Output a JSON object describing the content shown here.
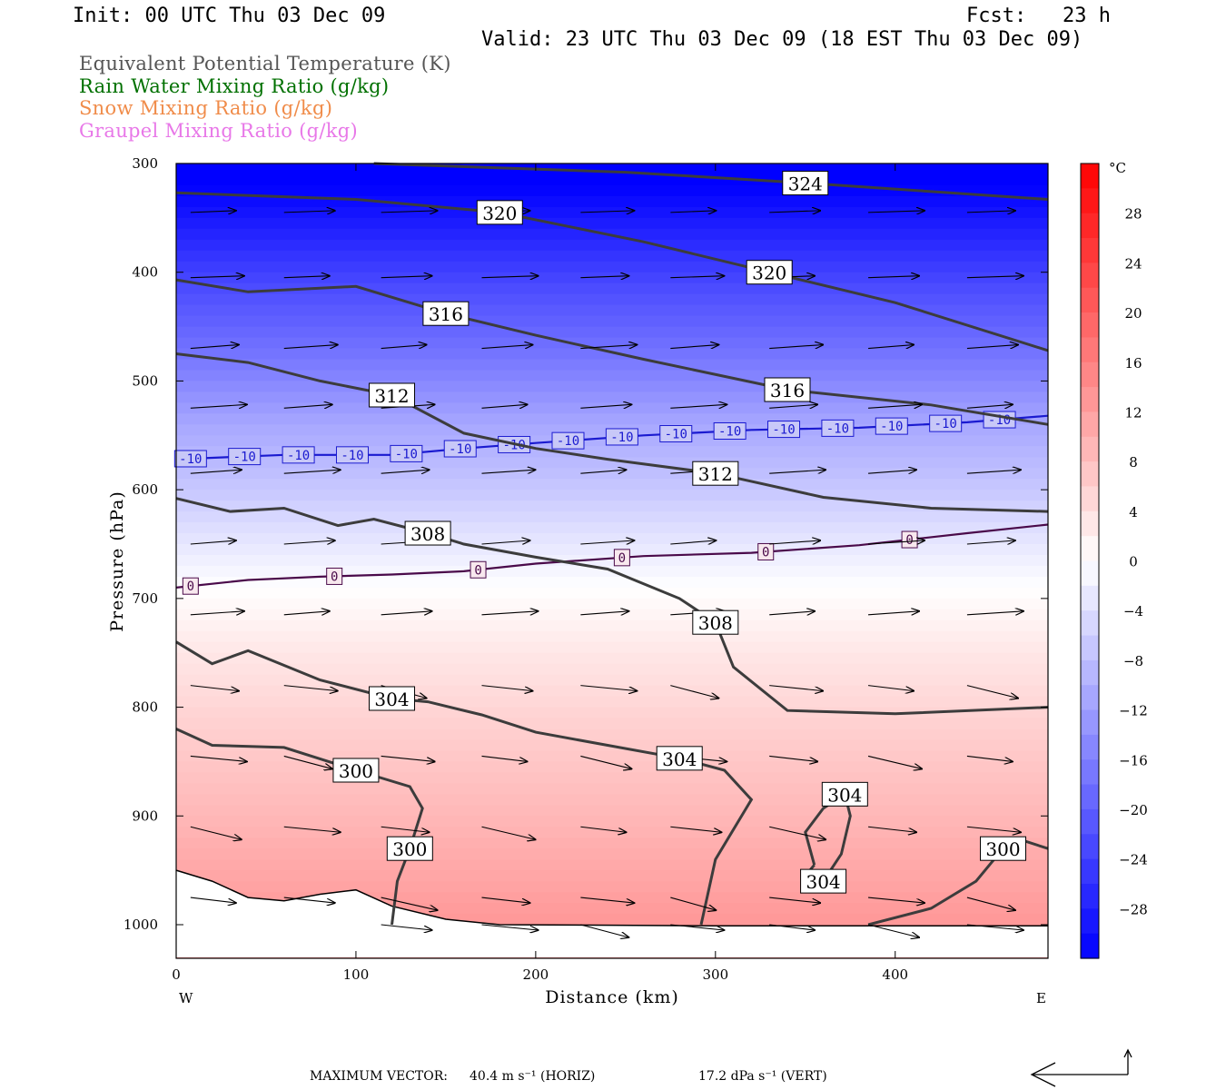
{
  "header": {
    "init": "Init: 00 UTC Thu 03 Dec 09",
    "fcst": "Fcst:   23 h",
    "valid": "Valid: 23 UTC Thu 03 Dec 09 (18 EST Thu 03 Dec 09)"
  },
  "fields": [
    {
      "label": "Equivalent Potential Temperature (K)",
      "color": "#555555"
    },
    {
      "label": "Rain Water Mixing Ratio (g/kg)",
      "color": "#007000"
    },
    {
      "label": "Snow Mixing Ratio (g/kg)",
      "color": "#f08c4a"
    },
    {
      "label": "Graupel Mixing Ratio (g/kg)",
      "color": "#e878e8"
    }
  ],
  "chart_data": {
    "type": "cross-section",
    "xlabel": "Distance (km)",
    "ylabel": "Pressure (hPa)",
    "xlim": [
      0,
      485
    ],
    "ylim": [
      1030,
      300
    ],
    "xticks": [
      0,
      100,
      200,
      300,
      400
    ],
    "yticks": [
      300,
      400,
      500,
      600,
      700,
      800,
      900,
      1000
    ],
    "x_ends": {
      "left": "W",
      "right": "E"
    },
    "colorbar": {
      "unit": "°C",
      "range": [
        -32,
        32
      ],
      "tick_values": [
        28,
        24,
        20,
        16,
        12,
        8,
        4,
        0,
        -4,
        -8,
        -12,
        -16,
        -20,
        -24,
        -28
      ],
      "low_color": "#0000ff",
      "high_color": "#ff0000"
    },
    "theta_e_contours": [
      {
        "value": 324,
        "points": [
          [
            110,
            300
          ],
          [
            250,
            308
          ],
          [
            350,
            318
          ],
          [
            485,
            333
          ]
        ]
      },
      {
        "value": 320,
        "points": [
          [
            0,
            327
          ],
          [
            100,
            333
          ],
          [
            180,
            345
          ],
          [
            260,
            372
          ],
          [
            330,
            400
          ],
          [
            400,
            428
          ],
          [
            485,
            472
          ]
        ]
      },
      {
        "value": 316,
        "points": [
          [
            0,
            407
          ],
          [
            40,
            418
          ],
          [
            100,
            413
          ],
          [
            150,
            438
          ],
          [
            200,
            458
          ],
          [
            260,
            480
          ],
          [
            340,
            508
          ],
          [
            420,
            522
          ],
          [
            485,
            540
          ]
        ]
      },
      {
        "value": 312,
        "points": [
          [
            0,
            475
          ],
          [
            40,
            483
          ],
          [
            80,
            500
          ],
          [
            120,
            513
          ],
          [
            160,
            548
          ],
          [
            200,
            562
          ],
          [
            240,
            572
          ],
          [
            300,
            585
          ],
          [
            360,
            607
          ],
          [
            420,
            617
          ],
          [
            485,
            620
          ]
        ]
      },
      {
        "value": 308,
        "points": [
          [
            0,
            608
          ],
          [
            30,
            620
          ],
          [
            60,
            617
          ],
          [
            90,
            633
          ],
          [
            110,
            627
          ],
          [
            140,
            640
          ],
          [
            160,
            650
          ],
          [
            200,
            662
          ],
          [
            240,
            673
          ],
          [
            280,
            700
          ],
          [
            300,
            722
          ],
          [
            310,
            763
          ],
          [
            340,
            803
          ],
          [
            400,
            806
          ],
          [
            485,
            800
          ]
        ]
      },
      {
        "value": 304,
        "points": [
          [
            0,
            740
          ],
          [
            20,
            760
          ],
          [
            40,
            748
          ],
          [
            80,
            775
          ],
          [
            120,
            792
          ],
          [
            140,
            795
          ],
          [
            170,
            807
          ],
          [
            200,
            823
          ],
          [
            240,
            835
          ],
          [
            280,
            847
          ],
          [
            305,
            858
          ],
          [
            320,
            885
          ],
          [
            300,
            940
          ],
          [
            292,
            1000
          ]
        ]
      },
      {
        "value": 304,
        "points": [
          [
            355,
            945
          ],
          [
            350,
            915
          ],
          [
            360,
            893
          ],
          [
            372,
            880
          ],
          [
            375,
            900
          ],
          [
            370,
            935
          ],
          [
            360,
            960
          ],
          [
            350,
            955
          ],
          [
            355,
            945
          ]
        ]
      },
      {
        "value": 300,
        "points": [
          [
            0,
            820
          ],
          [
            20,
            835
          ],
          [
            60,
            837
          ],
          [
            100,
            858
          ],
          [
            130,
            873
          ],
          [
            137,
            893
          ],
          [
            130,
            930
          ],
          [
            123,
            960
          ],
          [
            120,
            1000
          ]
        ]
      },
      {
        "value": 300,
        "points": [
          [
            385,
            1000
          ],
          [
            420,
            985
          ],
          [
            445,
            960
          ],
          [
            460,
            930
          ],
          [
            470,
            922
          ],
          [
            485,
            930
          ]
        ]
      }
    ],
    "isotherms": [
      {
        "value": -10,
        "points": [
          [
            0,
            572
          ],
          [
            60,
            568
          ],
          [
            120,
            568
          ],
          [
            160,
            562
          ],
          [
            200,
            557
          ],
          [
            260,
            550
          ],
          [
            320,
            545
          ],
          [
            380,
            543
          ],
          [
            440,
            538
          ],
          [
            485,
            532
          ]
        ]
      },
      {
        "value": 0,
        "points": [
          [
            0,
            690
          ],
          [
            40,
            683
          ],
          [
            80,
            680
          ],
          [
            120,
            678
          ],
          [
            160,
            675
          ],
          [
            200,
            668
          ],
          [
            260,
            661
          ],
          [
            320,
            658
          ],
          [
            380,
            651
          ],
          [
            440,
            640
          ],
          [
            485,
            632
          ]
        ]
      }
    ],
    "wind_vectors": {
      "x": [
        8,
        60,
        114,
        170,
        225,
        275,
        330,
        385,
        440
      ],
      "p": [
        345,
        405,
        470,
        525,
        585,
        650,
        715,
        780,
        845,
        910,
        975,
        1000
      ],
      "max_horiz": "40.4 m s⁻¹ (HORIZ)",
      "max_vert": "17.2 dPa s⁻¹ (VERT)"
    }
  },
  "footer": {
    "max_vector_label": "MAXIMUM VECTOR:",
    "horiz": "40.4 m s⁻¹ (HORIZ)",
    "vert": "17.2 dPa s⁻¹ (VERT)"
  }
}
